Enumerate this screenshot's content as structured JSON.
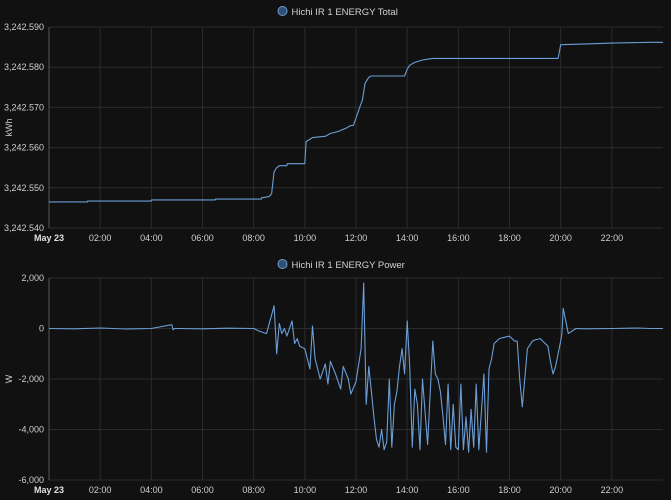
{
  "chart_data": [
    {
      "type": "line",
      "title": "",
      "legend": "Hichi IR 1 ENERGY Total",
      "legend_position": "top-center",
      "ylabel": "kWh",
      "xlabel": "",
      "date_label": "May 23",
      "grid": true,
      "ylim": [
        3242.54,
        3242.59
      ],
      "xlim_hours": [
        0,
        24
      ],
      "yticks": [
        "3,242.540",
        "3,242.550",
        "3,242.560",
        "3,242.570",
        "3,242.580",
        "3,242.590"
      ],
      "xticks": [
        "02:00",
        "04:00",
        "06:00",
        "08:00",
        "10:00",
        "12:00",
        "14:00",
        "16:00",
        "18:00",
        "20:00",
        "22:00"
      ],
      "color": "#6b9ed6",
      "series": [
        {
          "x_hours": [
            0,
            1.5,
            1.51,
            4.0,
            4.01,
            6.5,
            6.51,
            8.3,
            8.31,
            8.6,
            8.7,
            8.8,
            8.9,
            9.0,
            9.3,
            9.31,
            10.0,
            10.05,
            10.3,
            10.8,
            11.0,
            11.3,
            11.6,
            11.8,
            11.9,
            12.2,
            12.25,
            12.35,
            12.5,
            12.6,
            12.7,
            13.9,
            14.0,
            14.1,
            14.3,
            14.6,
            14.8,
            15.0,
            19.9,
            20.0,
            21.0,
            22.0,
            23.5,
            24.0
          ],
          "values": [
            3242.5465,
            3242.5465,
            3242.5467,
            3242.5467,
            3242.547,
            3242.547,
            3242.5472,
            3242.5472,
            3242.5475,
            3242.5478,
            3242.5485,
            3242.554,
            3242.555,
            3242.5555,
            3242.5555,
            3242.556,
            3242.556,
            3242.5615,
            3242.5625,
            3242.5628,
            3242.5635,
            3242.564,
            3242.5648,
            3242.5655,
            3242.5655,
            3242.571,
            3242.5718,
            3242.576,
            3242.5775,
            3242.5778,
            3242.5778,
            3242.5778,
            3242.5795,
            3242.5805,
            3242.5812,
            3242.5818,
            3242.582,
            3242.5822,
            3242.5822,
            3242.5856,
            3242.5858,
            3242.586,
            3242.5862,
            3242.5862
          ]
        }
      ]
    },
    {
      "type": "line",
      "title": "",
      "legend": "Hichi IR 1 ENERGY Power",
      "legend_position": "top-center",
      "ylabel": "W",
      "xlabel": "",
      "date_label": "May 23",
      "grid": true,
      "ylim": [
        -6000,
        2000
      ],
      "xlim_hours": [
        0,
        24
      ],
      "yticks": [
        "2,000",
        "0",
        "-2,000",
        "-4,000",
        "-6,000"
      ],
      "xticks": [
        "02:00",
        "04:00",
        "06:00",
        "08:00",
        "10:00",
        "12:00",
        "14:00",
        "16:00",
        "18:00",
        "20:00",
        "22:00"
      ],
      "color": "#6b9ed6",
      "series": [
        {
          "x_hours": [
            0,
            1.0,
            2.0,
            3.0,
            4.0,
            4.8,
            4.85,
            4.9,
            5.0,
            6.0,
            7.0,
            8.0,
            8.2,
            8.5,
            8.8,
            8.9,
            9.0,
            9.1,
            9.2,
            9.3,
            9.5,
            9.6,
            9.7,
            9.8,
            10.0,
            10.2,
            10.3,
            10.4,
            10.6,
            10.8,
            10.9,
            11.0,
            11.2,
            11.4,
            11.5,
            11.7,
            11.8,
            12.0,
            12.2,
            12.3,
            12.4,
            12.5,
            12.6,
            12.7,
            12.8,
            12.9,
            13.0,
            13.1,
            13.2,
            13.3,
            13.4,
            13.5,
            13.6,
            13.7,
            13.8,
            13.9,
            14.0,
            14.1,
            14.2,
            14.3,
            14.4,
            14.5,
            14.6,
            14.8,
            15.0,
            15.1,
            15.2,
            15.3,
            15.4,
            15.5,
            15.6,
            15.7,
            15.8,
            15.9,
            16.0,
            16.1,
            16.2,
            16.3,
            16.4,
            16.5,
            16.6,
            16.7,
            16.8,
            16.9,
            17.0,
            17.1,
            17.2,
            17.3,
            17.4,
            17.6,
            17.8,
            18.0,
            18.2,
            18.3,
            18.4,
            18.5,
            18.7,
            18.9,
            19.0,
            19.2,
            19.4,
            19.5,
            19.6,
            19.7,
            19.8,
            19.9,
            20.0,
            20.05,
            20.1,
            20.3,
            20.6,
            21.0,
            22.0,
            23.0,
            23.5,
            24.0
          ],
          "values": [
            0,
            -10,
            20,
            -20,
            0,
            150,
            -50,
            0,
            0,
            -10,
            10,
            0,
            -100,
            -200,
            900,
            -1000,
            200,
            -200,
            0,
            -300,
            300,
            -600,
            -400,
            -700,
            -800,
            -1600,
            100,
            -1200,
            -2000,
            -1400,
            -2200,
            -1300,
            -1800,
            -2400,
            -1500,
            -2000,
            -2600,
            -2100,
            -800,
            1800,
            -3000,
            -1500,
            -2500,
            -3500,
            -4400,
            -4700,
            -4000,
            -4800,
            -4500,
            -2000,
            -4700,
            -3000,
            -2500,
            -1500,
            -800,
            -1800,
            300,
            -1500,
            -4700,
            -2400,
            -3000,
            -4800,
            -2000,
            -4600,
            -500,
            -1800,
            -2000,
            -2500,
            -3500,
            -4600,
            -2200,
            -4800,
            -3000,
            -4700,
            -4800,
            -2200,
            -4800,
            -3500,
            -4900,
            -3200,
            -4700,
            -2200,
            -4800,
            -3300,
            -1800,
            -4900,
            -1600,
            -1200,
            -600,
            -400,
            -350,
            -300,
            -500,
            -500,
            -2000,
            -3100,
            -800,
            -500,
            -450,
            -400,
            -600,
            -700,
            -1300,
            -1800,
            -1500,
            -1000,
            -500,
            -200,
            800,
            -200,
            0,
            -10,
            0,
            20,
            0,
            0
          ]
        }
      ]
    }
  ]
}
